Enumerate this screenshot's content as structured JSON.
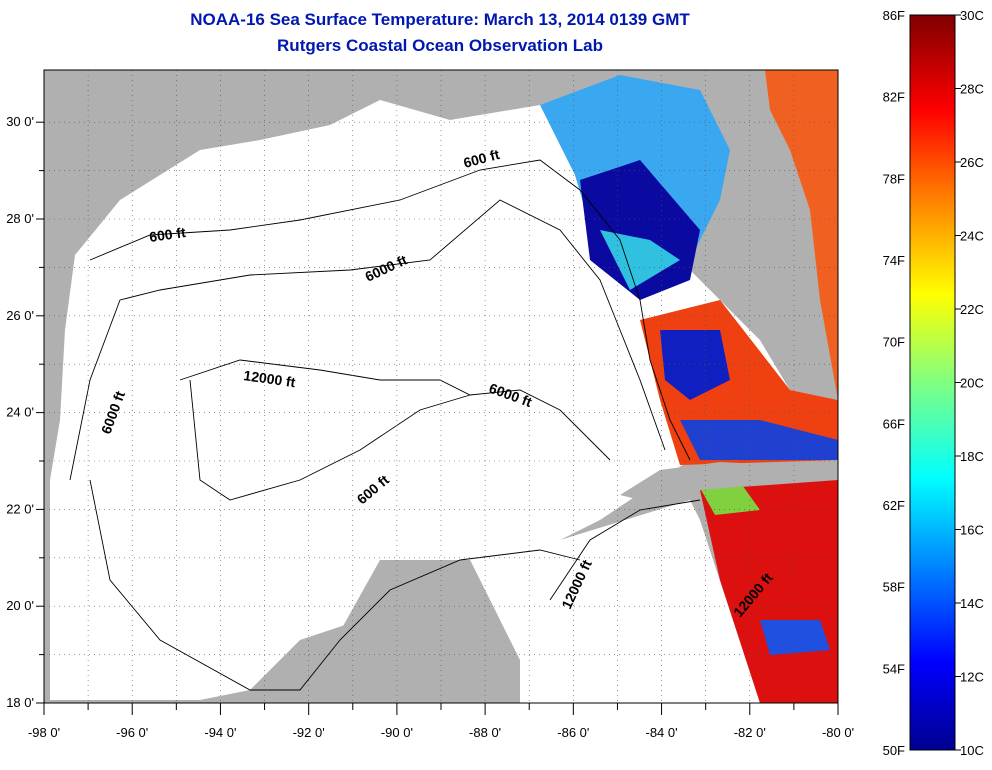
{
  "title": {
    "line1": "NOAA-16 Sea Surface Temperature:  March 13, 2014 0139 GMT",
    "line2": "Rutgers Coastal Ocean Observation Lab"
  },
  "map": {
    "lon_range": [
      -98,
      -80
    ],
    "lat_range": [
      18,
      31
    ],
    "x_ticks": [
      "-98 0'",
      "-96 0'",
      "-94 0'",
      "-92 0'",
      "-90 0'",
      "-88 0'",
      "-86 0'",
      "-84 0'",
      "-82 0'",
      "-80 0'"
    ],
    "y_ticks": [
      "18 0'",
      "20 0'",
      "22 0'",
      "24 0'",
      "26 0'",
      "28 0'",
      "30 0'"
    ],
    "contour_labels": [
      "600 ft",
      "600 ft",
      "600 ft",
      "6000 ft",
      "6000 ft",
      "6000 ft",
      "12000 ft",
      "12000 ft",
      "12000 ft"
    ],
    "land_color": "#b0b0b0",
    "water_color": "#ffffff"
  },
  "colorbar": {
    "f_labels": [
      "86F",
      "82F",
      "78F",
      "74F",
      "70F",
      "66F",
      "62F",
      "58F",
      "54F",
      "50F"
    ],
    "c_labels": [
      "30C",
      "28C",
      "26C",
      "24C",
      "22C",
      "20C",
      "18C",
      "16C",
      "14C",
      "12C",
      "10C"
    ],
    "range_c": [
      10,
      30
    ],
    "colors": [
      "#00008f",
      "#0000ff",
      "#0080ff",
      "#00ffff",
      "#80ff80",
      "#ffff00",
      "#ff8000",
      "#ff0000",
      "#800000"
    ]
  }
}
